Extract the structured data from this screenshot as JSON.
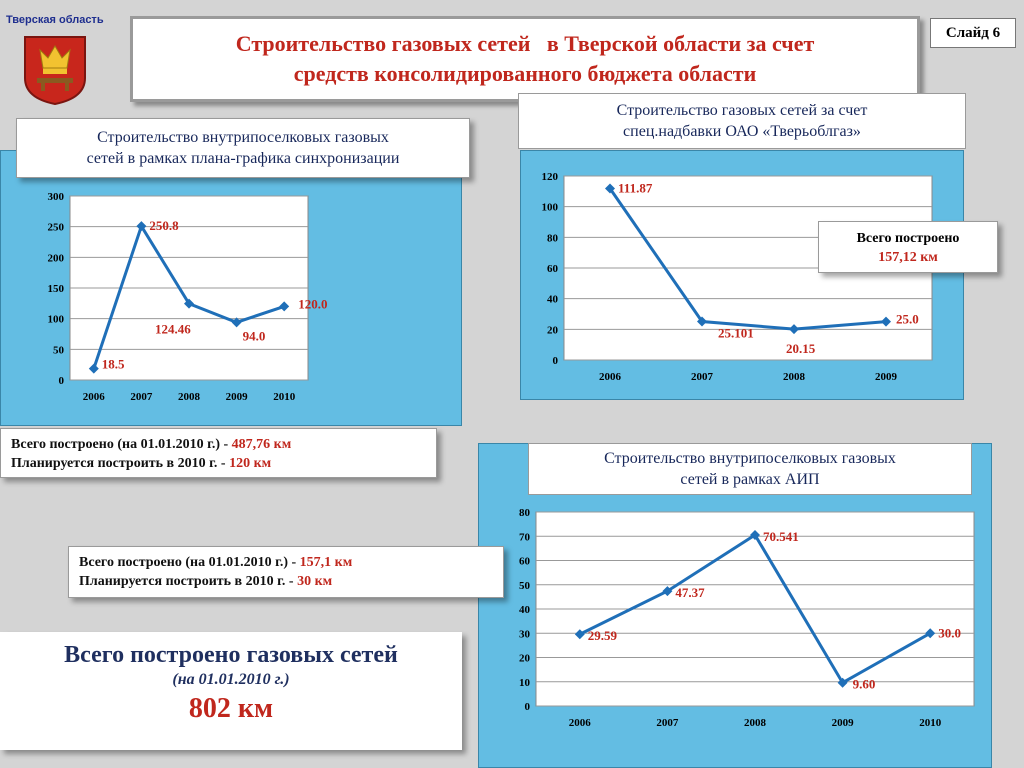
{
  "header": {
    "region": "Тверская область",
    "title_line1": "Строительство газовых сетей   в Тверской области за счет",
    "title_line2": "средств консолидированного бюджета области",
    "slide": "Слайд 6"
  },
  "colors": {
    "line": "#1f6fb8",
    "value": "#c0271d",
    "panel": "#63bde3"
  },
  "chart_data": [
    {
      "type": "line",
      "title_line1": "Строительство внутрипоселковых газовых",
      "title_line2": "сетей в рамках плана-графика синхронизации",
      "categories": [
        "2006",
        "2007",
        "2008",
        "2009",
        "2010"
      ],
      "values": [
        18.5,
        250.8,
        124.46,
        94.0,
        120.0
      ],
      "labels": [
        "18.5",
        "250.8",
        "124.46",
        "94.0",
        "120.0"
      ],
      "ylim": [
        0,
        300
      ],
      "yticks": [
        "0",
        "50",
        "100",
        "150",
        "200",
        "250",
        "300"
      ]
    },
    {
      "type": "line",
      "title_line1": "Строительство газовых сетей за счет",
      "title_line2": "спец.надбавки ОАО «Тверьоблгаз»",
      "categories": [
        "2006",
        "2007",
        "2008",
        "2009"
      ],
      "values": [
        111.87,
        25.101,
        20.15,
        25.0
      ],
      "labels": [
        "111.87",
        "25.101",
        "20.15",
        "25.0"
      ],
      "ylim": [
        0,
        120
      ],
      "yticks": [
        "0",
        "20",
        "40",
        "60",
        "80",
        "100",
        "120"
      ]
    },
    {
      "type": "line",
      "title_line1": "Строительство внутрипоселковых газовых",
      "title_line2": "сетей в рамках АИП",
      "categories": [
        "2006",
        "2007",
        "2008",
        "2009",
        "2010"
      ],
      "values": [
        29.59,
        47.37,
        70.541,
        9.6,
        30.0
      ],
      "labels": [
        "29.59",
        "47.37",
        "70.541",
        "9.60",
        "30.0"
      ],
      "ylim": [
        0,
        80
      ],
      "yticks": [
        "0",
        "10",
        "20",
        "30",
        "40",
        "50",
        "60",
        "70",
        "80"
      ]
    }
  ],
  "info1": {
    "line1_text": "Всего построено (на 01.01.2010 г.) - ",
    "line1_value": "487,76 км",
    "line2_text": "Планируется построить в 2010 г.  - ",
    "line2_value": "120 км"
  },
  "info2": {
    "line1": "Всего построено",
    "line2": "157,12 км"
  },
  "info3": {
    "line1_text": "Всего построено  (на 01.01.2010 г.) - ",
    "line1_value": "157,1 км",
    "line2_text": "Планируется построить  в 2010 г. - ",
    "line2_value": "30 км"
  },
  "total": {
    "line1": "Всего построено газовых сетей",
    "line2": "(на 01.01.2010 г.)",
    "line3": "802 км"
  }
}
